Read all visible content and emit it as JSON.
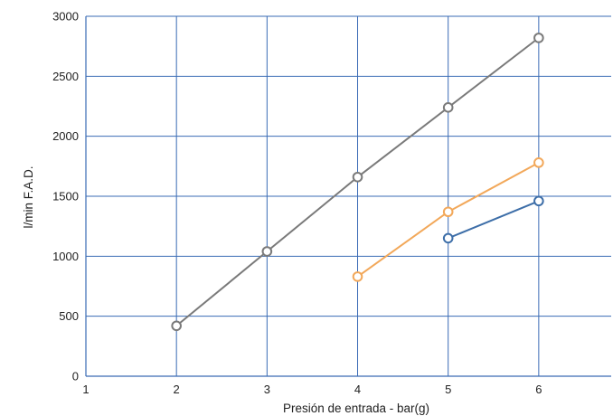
{
  "chart_data": {
    "type": "line",
    "xlabel": "Presión de entrada  - bar(g)",
    "ylabel": "l/min F.A.D.",
    "xlim": [
      1,
      6.8
    ],
    "ylim": [
      0,
      3000
    ],
    "x_ticks": [
      1,
      2,
      3,
      4,
      5,
      6
    ],
    "y_ticks": [
      0,
      500,
      1000,
      1500,
      2000,
      2500,
      3000
    ],
    "grid": true,
    "legend": "none",
    "colors": {
      "grid": "#3a6bb5",
      "axis": "#3a6bb5"
    },
    "series": [
      {
        "color": "#7a7a7a",
        "x": [
          2,
          3,
          4,
          5,
          6
        ],
        "y": [
          420,
          1040,
          1660,
          2240,
          2820
        ]
      },
      {
        "color": "#f2a85a",
        "x": [
          4,
          5,
          6
        ],
        "y": [
          830,
          1370,
          1780
        ]
      },
      {
        "color": "#3d6ea8",
        "x": [
          5,
          6
        ],
        "y": [
          1150,
          1460
        ]
      }
    ]
  }
}
